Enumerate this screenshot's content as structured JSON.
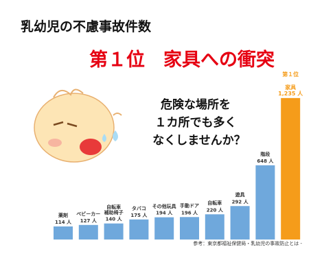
{
  "chart_data": {
    "type": "bar",
    "title": "乳幼児の不慮事故件数",
    "subtitle": "第１位　家具への衝突",
    "callout": [
      "危険な場所を",
      "１カ所でも多く",
      "なくしませんか？"
    ],
    "rank_label": "第１位",
    "source": "参考：東京都福祉保健局・乳幼児の事故防止とは -",
    "categories": [
      "薬剤",
      "ベビーカー",
      "自転車\n補助椅子",
      "タバコ",
      "その他玩具",
      "手動ドア",
      "自転車",
      "遊具",
      "階段",
      "家具"
    ],
    "values": [
      114,
      127,
      140,
      175,
      194,
      196,
      220,
      292,
      648,
      1235
    ],
    "value_labels": [
      "114 人",
      "127 人",
      "140 人",
      "175 人",
      "194 人",
      "196 人",
      "220 人",
      "292 人",
      "648 人",
      "1,235 人"
    ],
    "colors": [
      "#6fa8dc",
      "#6fa8dc",
      "#6fa8dc",
      "#6fa8dc",
      "#6fa8dc",
      "#6fa8dc",
      "#6fa8dc",
      "#6fa8dc",
      "#6fa8dc",
      "#f59c1a"
    ],
    "label_colors": [
      "#333333",
      "#333333",
      "#333333",
      "#333333",
      "#333333",
      "#333333",
      "#333333",
      "#333333",
      "#333333",
      "#f59c1a"
    ],
    "ylim": [
      0,
      1300
    ]
  }
}
